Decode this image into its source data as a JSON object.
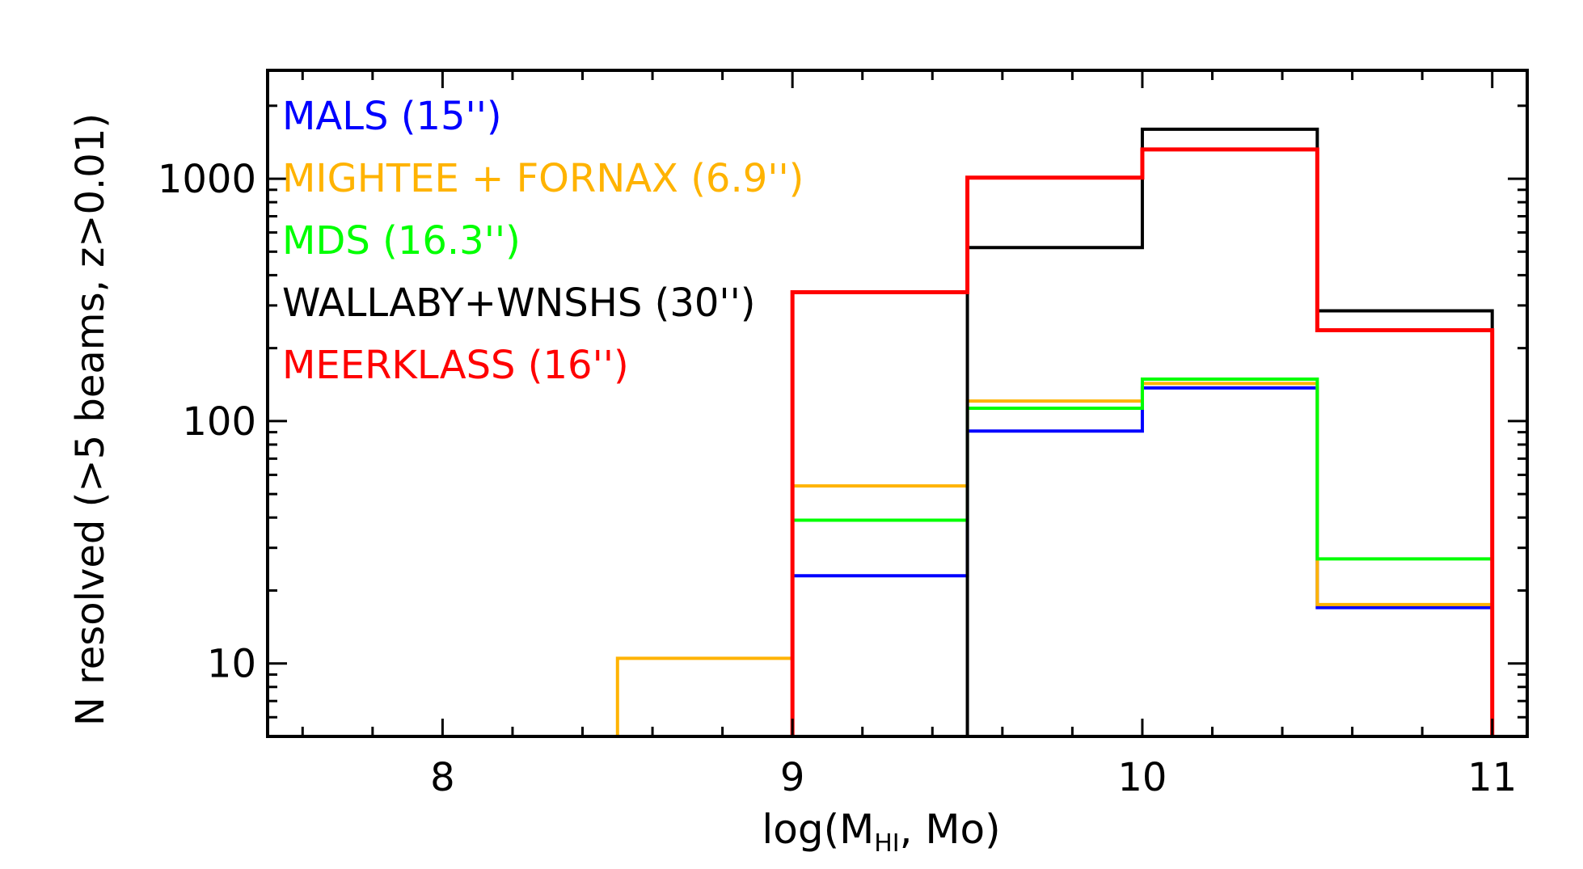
{
  "chart_data": {
    "type": "line",
    "style": "step-histogram",
    "xlabel_main": "log(M",
    "xlabel_sub": "HI",
    "xlabel_end": ", Mo)",
    "ylabel": "N resolved (>5 beams, z>0.01)",
    "xlim": [
      7.5,
      11.1
    ],
    "ylim": [
      5,
      2800
    ],
    "yscale": "log",
    "x_ticks": [
      8,
      9,
      10,
      11
    ],
    "x_tick_labels": [
      "8",
      "9",
      "10",
      "11"
    ],
    "y_ticks": [
      10,
      100,
      1000
    ],
    "y_tick_labels": [
      "10",
      "100",
      "1000"
    ],
    "series": [
      {
        "name": "MALS (15'')",
        "color": "#0000ff",
        "bin_edges": [
          9.0,
          9.5,
          10.0,
          10.5,
          11.0
        ],
        "values": [
          23,
          91,
          137,
          17
        ],
        "drop_to_floor": false
      },
      {
        "name": "MIGHTEE + FORNAX (6.9'')",
        "color": "#ffb300",
        "bin_edges": [
          8.5,
          9.0,
          9.5,
          10.0,
          10.5,
          11.0
        ],
        "values": [
          10.5,
          54,
          121,
          143,
          17.5
        ],
        "drop_to_floor": true
      },
      {
        "name": "MDS (16.3'')",
        "color": "#00ff00",
        "bin_edges": [
          9.0,
          9.5,
          10.0,
          10.5,
          11.0
        ],
        "values": [
          39,
          113,
          149,
          27
        ],
        "drop_to_floor": false
      },
      {
        "name": "WALLABY+WNSHS (30'')",
        "color": "#000000",
        "bin_edges": [
          9.5,
          10.0,
          10.5,
          11.0
        ],
        "values": [
          520,
          1600,
          285
        ],
        "drop_to_floor": true
      },
      {
        "name": "MEERKLASS (16'')",
        "color": "#ff0000",
        "bin_edges": [
          9.0,
          9.5,
          10.0,
          10.5,
          11.0
        ],
        "values": [
          340,
          1010,
          1320,
          237
        ],
        "drop_to_floor": true
      }
    ]
  }
}
